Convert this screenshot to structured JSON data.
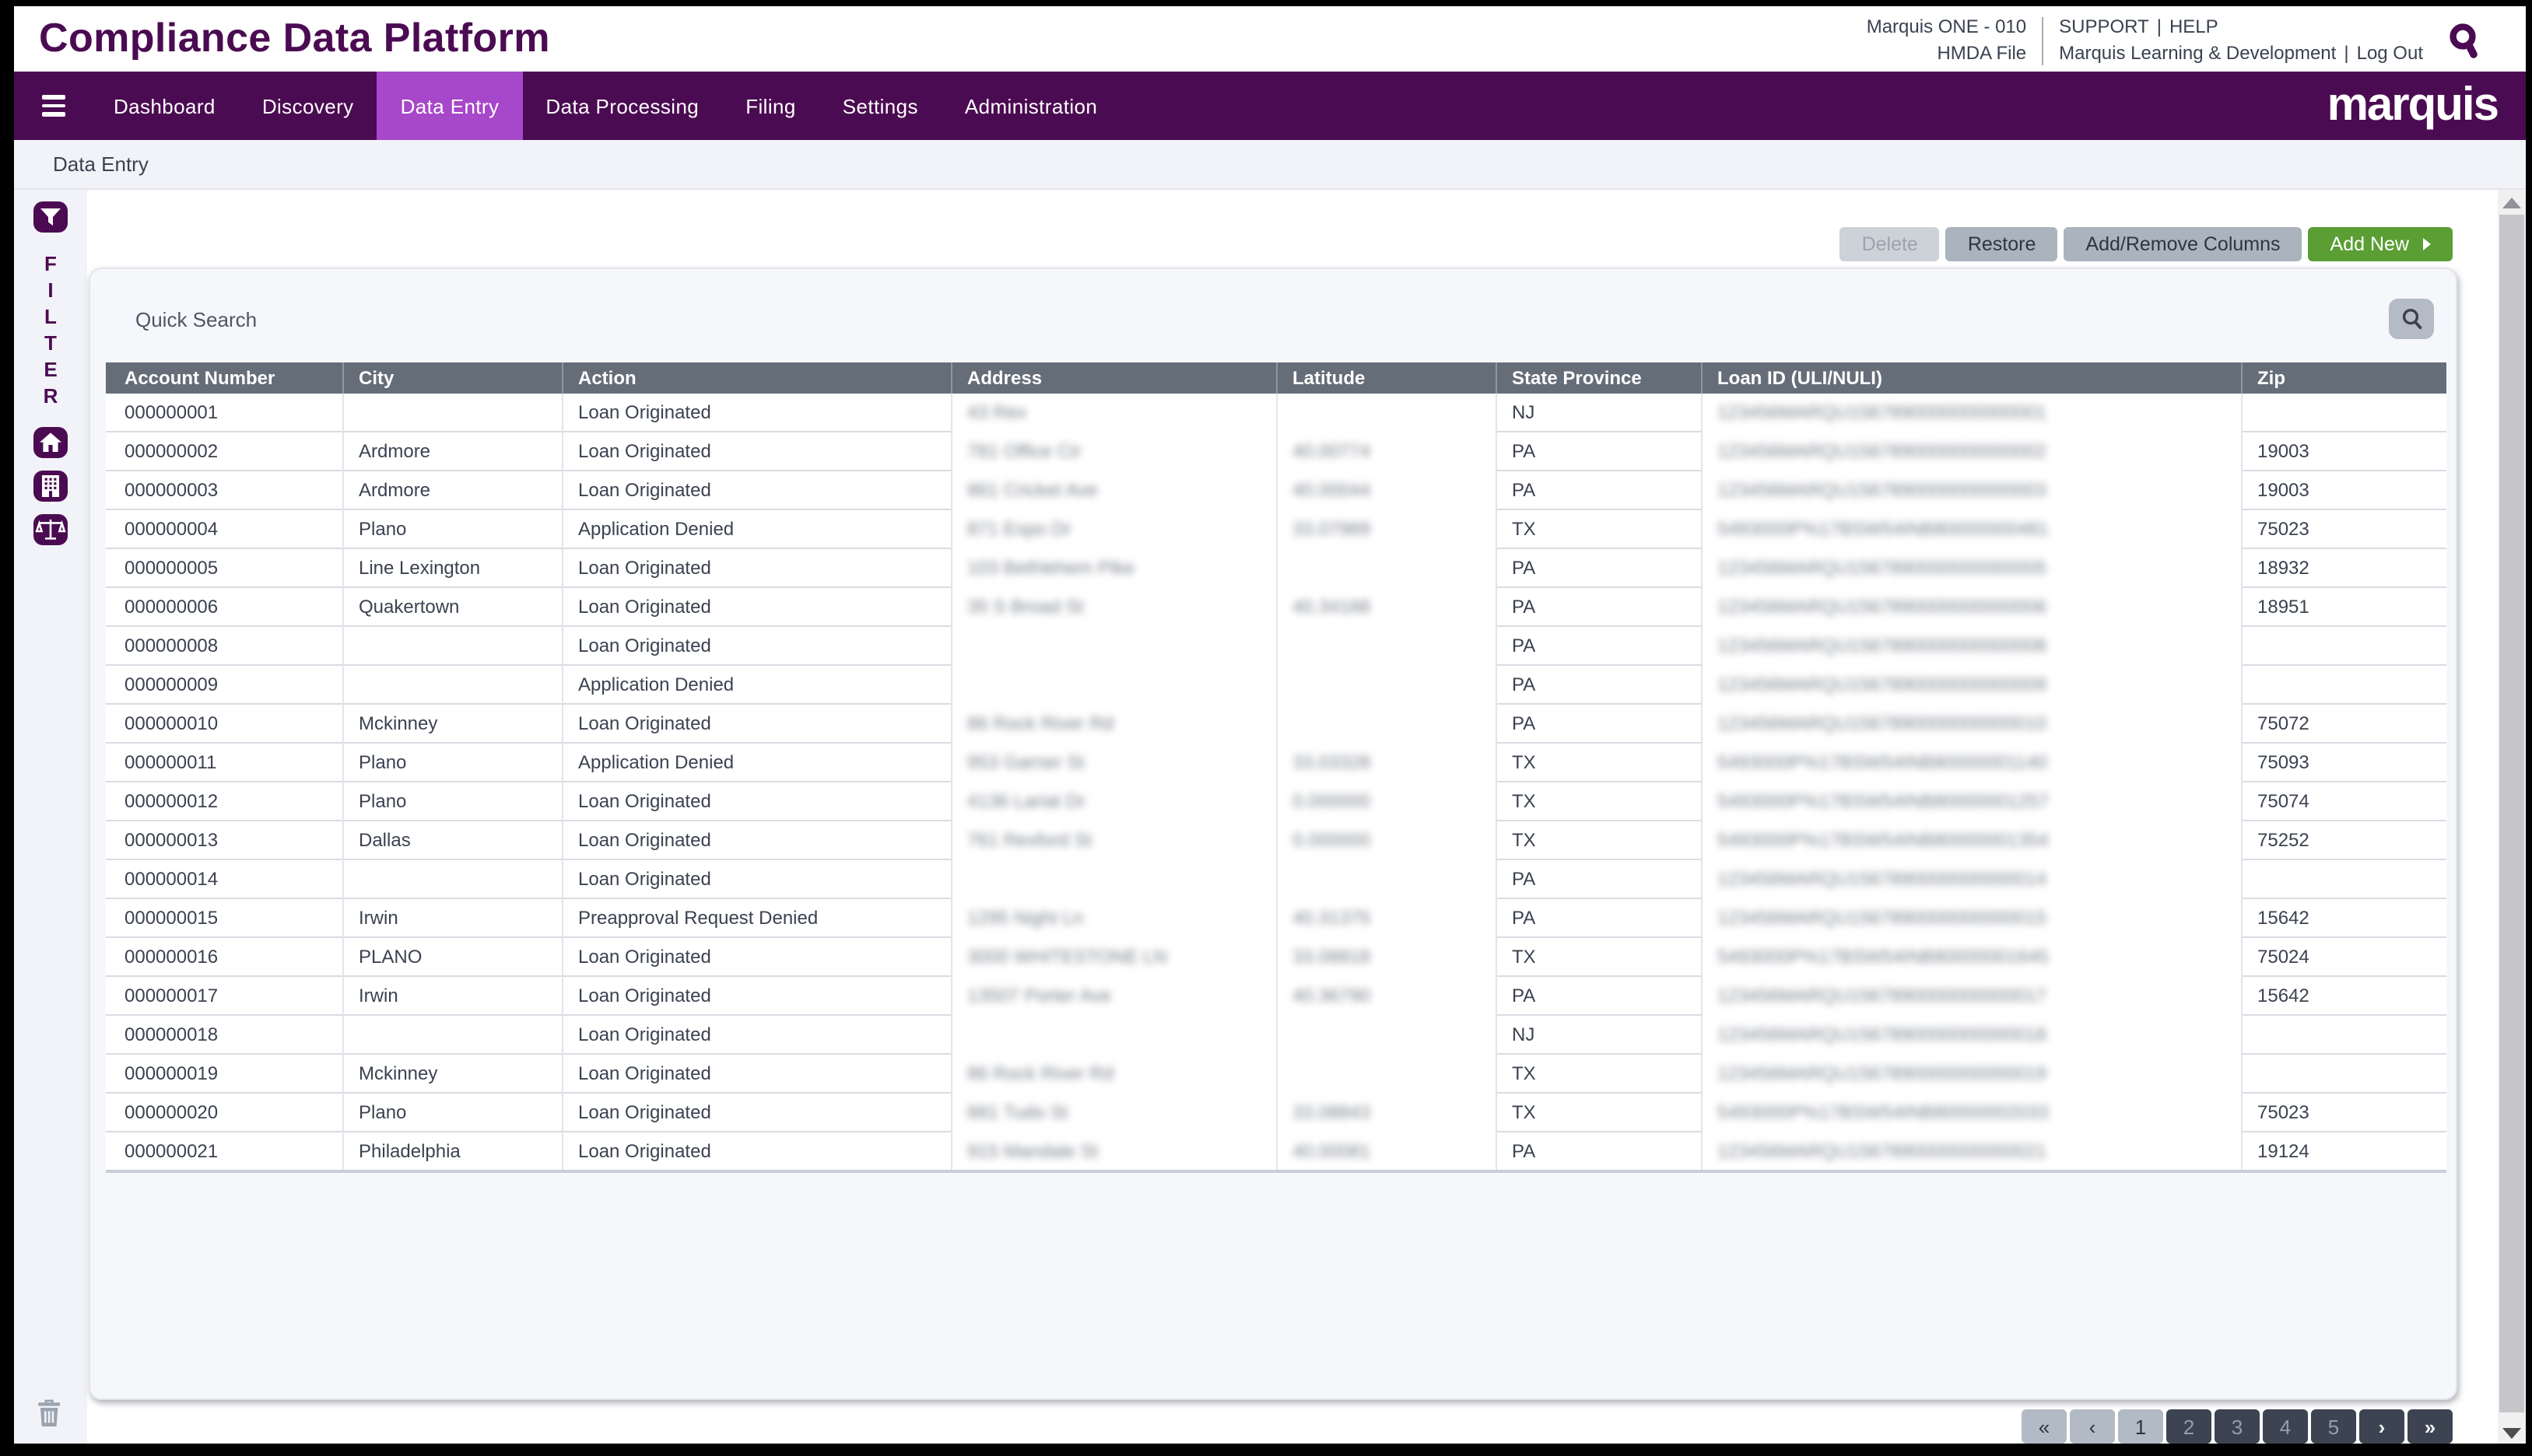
{
  "header": {
    "app_title": "Compliance Data Platform",
    "environment": "Marquis ONE - 010",
    "file": "HMDA File",
    "support": "SUPPORT",
    "help": "HELP",
    "divider": "|",
    "learning": "Marquis Learning & Development",
    "logout": "Log Out"
  },
  "nav": {
    "items": [
      {
        "label": "Dashboard",
        "active": false
      },
      {
        "label": "Discovery",
        "active": false
      },
      {
        "label": "Data Entry",
        "active": true
      },
      {
        "label": "Data Processing",
        "active": false
      },
      {
        "label": "Filing",
        "active": false
      },
      {
        "label": "Settings",
        "active": false
      },
      {
        "label": "Administration",
        "active": false
      }
    ],
    "logo": "marquis"
  },
  "breadcrumb": "Data Entry",
  "sidebar": {
    "filter_letters": [
      "F",
      "I",
      "L",
      "T",
      "E",
      "R"
    ]
  },
  "toolbar": {
    "delete_label": "Delete",
    "restore_label": "Restore",
    "columns_label": "Add/Remove Columns",
    "add_new_label": "Add New"
  },
  "quick_search": {
    "placeholder": "Quick Search"
  },
  "table": {
    "columns": [
      {
        "key": "account",
        "label": "Account Number",
        "blurred": false
      },
      {
        "key": "city",
        "label": "City",
        "blurred": false
      },
      {
        "key": "action",
        "label": "Action",
        "blurred": false
      },
      {
        "key": "address",
        "label": "Address",
        "blurred": true
      },
      {
        "key": "latitude",
        "label": "Latitude",
        "blurred": true
      },
      {
        "key": "state",
        "label": "State Province",
        "blurred": false
      },
      {
        "key": "loan_id",
        "label": "Loan ID (ULI/NULI)",
        "blurred": true
      },
      {
        "key": "zip",
        "label": "Zip",
        "blurred": false
      }
    ],
    "redaction_note": "Address, Latitude and Loan ID (ULI/NULI) cell values are blurred (redacted) in the screenshot; those strings are illegible approximations rendered blurred.",
    "rows": [
      {
        "account": "000000001",
        "city": "",
        "action": "Loan Originated",
        "address": "43 Rex",
        "latitude": "",
        "state": "NJ",
        "loan_id": "123456MARQU1567890000000000001",
        "zip": ""
      },
      {
        "account": "000000002",
        "city": "Ardmore",
        "action": "Loan Originated",
        "address": "781 Office Cir",
        "latitude": "40.00774",
        "state": "PA",
        "loan_id": "123456MARQU1567890000000000002",
        "zip": "19003"
      },
      {
        "account": "000000003",
        "city": "Ardmore",
        "action": "Loan Originated",
        "address": "861 Cricket Ave",
        "latitude": "40.00044",
        "state": "PA",
        "loan_id": "123456MARQU1567890000000000003",
        "zip": "19003"
      },
      {
        "account": "000000004",
        "city": "Plano",
        "action": "Application Denied",
        "address": "871 Expo Dr",
        "latitude": "33.07989",
        "state": "TX",
        "loan_id": "5493000P%17BSW54INB80000000481",
        "zip": "75023"
      },
      {
        "account": "000000005",
        "city": "Line Lexington",
        "action": "Loan Originated",
        "address": "103 Bethlehem Pike",
        "latitude": "",
        "state": "PA",
        "loan_id": "123456MARQU1567890000000000005",
        "zip": "18932"
      },
      {
        "account": "000000006",
        "city": "Quakertown",
        "action": "Loan Originated",
        "address": "35 S Broad St",
        "latitude": "40.34188",
        "state": "PA",
        "loan_id": "123456MARQU1567890000000000006",
        "zip": "18951"
      },
      {
        "account": "000000008",
        "city": "",
        "action": "Loan Originated",
        "address": "",
        "latitude": "",
        "state": "PA",
        "loan_id": "123456MARQU1567890000000000008",
        "zip": ""
      },
      {
        "account": "000000009",
        "city": "",
        "action": "Application Denied",
        "address": "",
        "latitude": "",
        "state": "PA",
        "loan_id": "123456MARQU1567890000000000009",
        "zip": ""
      },
      {
        "account": "000000010",
        "city": "Mckinney",
        "action": "Loan Originated",
        "address": "86 Rock River Rd",
        "latitude": "",
        "state": "PA",
        "loan_id": "123456MARQU1567890000000000010",
        "zip": "75072"
      },
      {
        "account": "000000011",
        "city": "Plano",
        "action": "Application Denied",
        "address": "953 Garner St",
        "latitude": "33.03328",
        "state": "TX",
        "loan_id": "5493000P%17BSW54INB80000001140",
        "zip": "75093"
      },
      {
        "account": "000000012",
        "city": "Plano",
        "action": "Loan Originated",
        "address": "4136 Lariat Dr",
        "latitude": "0.000000",
        "state": "TX",
        "loan_id": "5493000P%17BSW54INB80000001257",
        "zip": "75074"
      },
      {
        "account": "000000013",
        "city": "Dallas",
        "action": "Loan Originated",
        "address": "761 Rexford St",
        "latitude": "0.000000",
        "state": "TX",
        "loan_id": "5493000P%17BSW54INB80000001354",
        "zip": "75252"
      },
      {
        "account": "000000014",
        "city": "",
        "action": "Loan Originated",
        "address": "",
        "latitude": "",
        "state": "PA",
        "loan_id": "123456MARQU1567890000000000014",
        "zip": ""
      },
      {
        "account": "000000015",
        "city": "Irwin",
        "action": "Preapproval Request Denied",
        "address": "1295 Night Ln",
        "latitude": "40.31375",
        "state": "PA",
        "loan_id": "123456MARQU1567890000000000015",
        "zip": "15642"
      },
      {
        "account": "000000016",
        "city": "PLANO",
        "action": "Loan Originated",
        "address": "3000 WHITESTONE LN",
        "latitude": "33.08818",
        "state": "TX",
        "loan_id": "5493000P%17BSW54INB80000001645",
        "zip": "75024"
      },
      {
        "account": "000000017",
        "city": "Irwin",
        "action": "Loan Originated",
        "address": "13507 Porter Ave",
        "latitude": "40.36790",
        "state": "PA",
        "loan_id": "123456MARQU1567890000000000017",
        "zip": "15642"
      },
      {
        "account": "000000018",
        "city": "",
        "action": "Loan Originated",
        "address": "",
        "latitude": "",
        "state": "NJ",
        "loan_id": "123456MARQU1567890000000000018",
        "zip": ""
      },
      {
        "account": "000000019",
        "city": "Mckinney",
        "action": "Loan Originated",
        "address": "86 Rock River Rd",
        "latitude": "",
        "state": "TX",
        "loan_id": "123456MARQU1567890000000000019",
        "zip": ""
      },
      {
        "account": "000000020",
        "city": "Plano",
        "action": "Loan Originated",
        "address": "881 Tudo St",
        "latitude": "33.08843",
        "state": "TX",
        "loan_id": "5493000P%17BSW54INB80000002033",
        "zip": "75023"
      },
      {
        "account": "000000021",
        "city": "Philadelphia",
        "action": "Loan Originated",
        "address": "915 Mandale St",
        "latitude": "40.00081",
        "state": "PA",
        "loan_id": "123456MARQU1567890000000000021",
        "zip": "19124"
      }
    ]
  },
  "pagination": {
    "buttons": [
      {
        "label": "«",
        "kind": "first",
        "style": "light",
        "active": false
      },
      {
        "label": "‹",
        "kind": "prev",
        "style": "light",
        "active": false
      },
      {
        "label": "1",
        "kind": "page",
        "style": "light",
        "active": true
      },
      {
        "label": "2",
        "kind": "page",
        "style": "dark",
        "active": false
      },
      {
        "label": "3",
        "kind": "page",
        "style": "dark",
        "active": false
      },
      {
        "label": "4",
        "kind": "page",
        "style": "dark",
        "active": false
      },
      {
        "label": "5",
        "kind": "page",
        "style": "dark",
        "active": false
      },
      {
        "label": "›",
        "kind": "next",
        "style": "dark-arrow",
        "active": false
      },
      {
        "label": "»",
        "kind": "last",
        "style": "dark-arrow",
        "active": false
      }
    ]
  },
  "colors": {
    "brand_purple": "#4b0b52",
    "nav_active_purple": "#a747c9",
    "add_new_green": "#5b9e34",
    "table_header_gray": "#656d79",
    "pagination_dark": "#3c4452",
    "pagination_light": "#b2bac5"
  }
}
